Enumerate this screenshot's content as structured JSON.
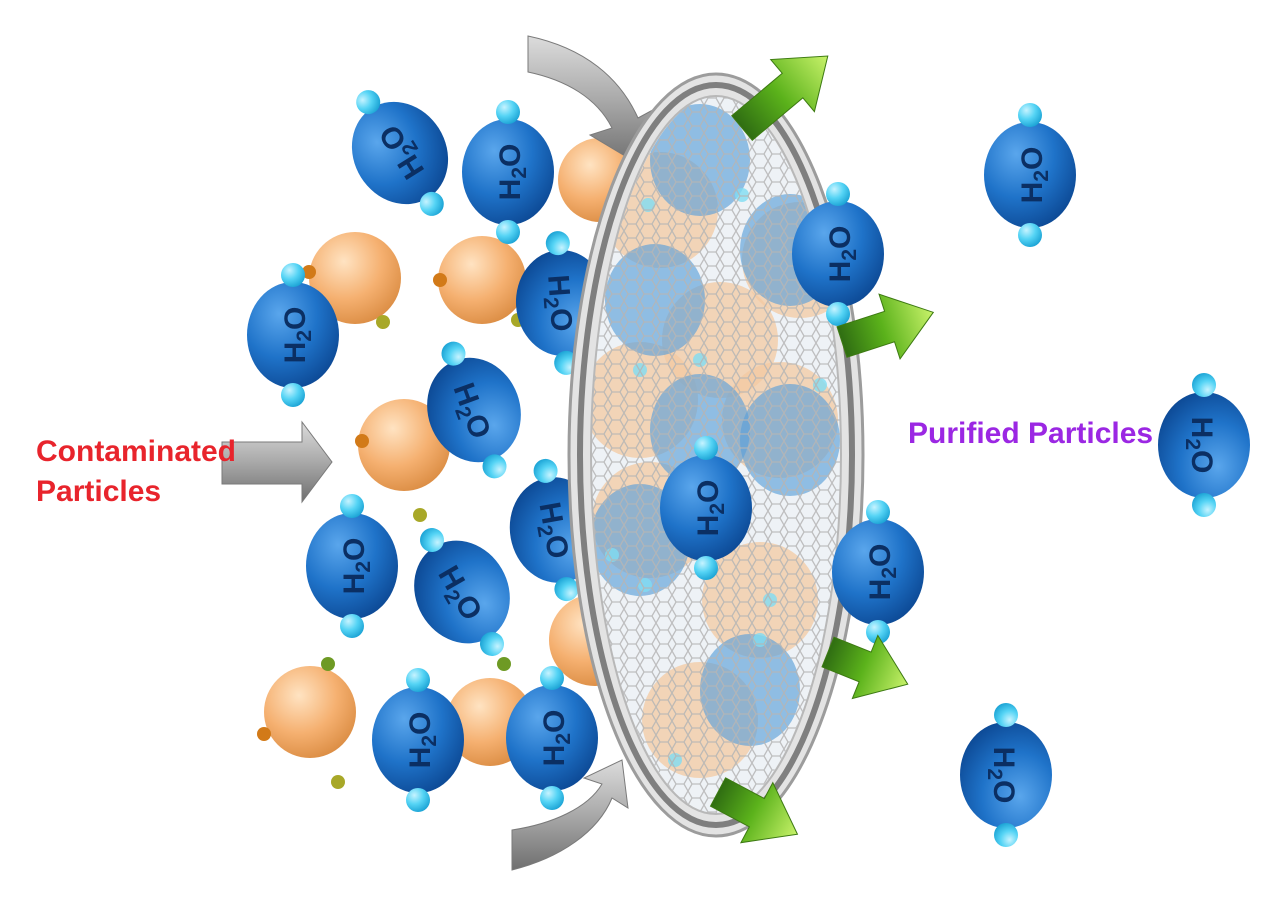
{
  "labels": {
    "contaminated": "Contaminated\nParticles",
    "purified": "Purified Particles"
  },
  "molecule_text": "H2O",
  "colors": {
    "contaminated_label": "#e8242c",
    "purified_label": "#9b27e3",
    "water_molecule": "#1f73c9",
    "hydrogen_atom": "#55d4f5",
    "contaminant": "#f5b070",
    "contaminant_dot_orange": "#d27a18",
    "contaminant_dot_olive": "#a8a828",
    "contaminant_dot_green": "#6e9a24",
    "inflow_arrow": "#a9a9a9",
    "outflow_arrow": "#64c21c",
    "filter_rim": "#8c8c8c",
    "filter_mesh": "#bdbdbd"
  },
  "icons": {
    "inflow": "arrow-right-icon",
    "outflow": "arrow-right-icon",
    "filter": "filter-membrane-icon",
    "molecule": "water-molecule-icon"
  }
}
